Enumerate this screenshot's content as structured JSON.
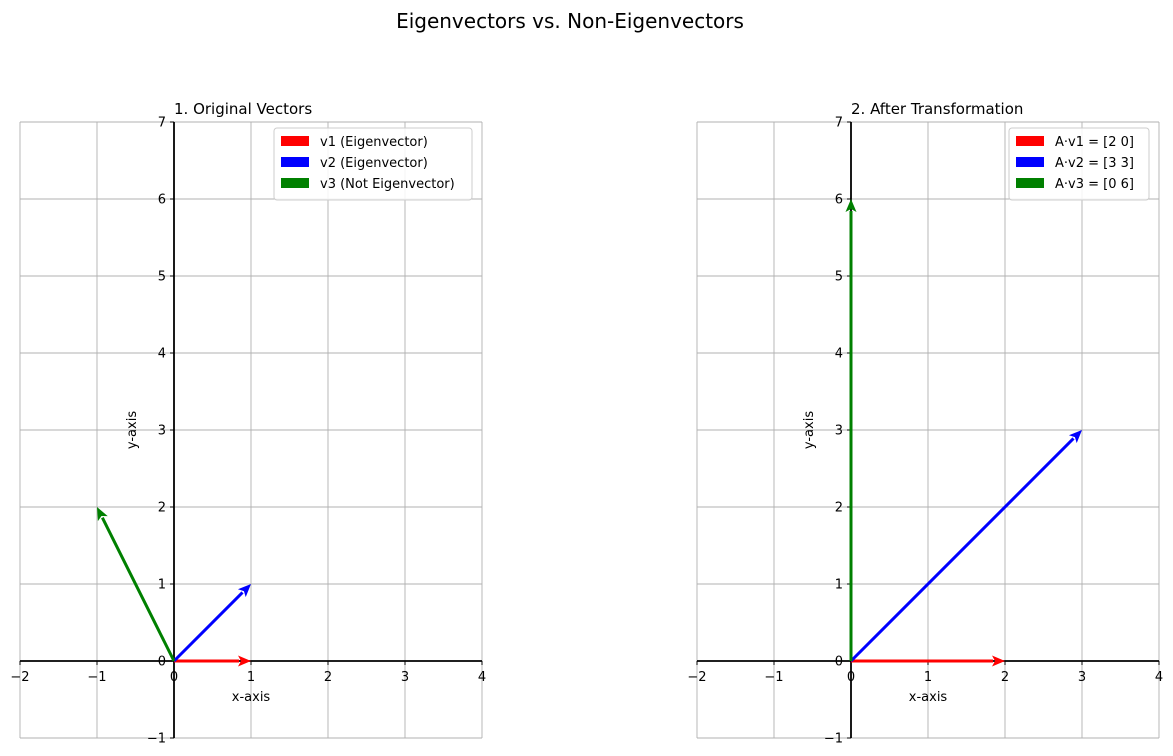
{
  "figure": {
    "suptitle": "Eigenvectors vs. Non-Eigenvectors"
  },
  "chart_data": [
    {
      "type": "quiver",
      "title": "1. Original Vectors",
      "xlabel": "x-axis",
      "ylabel": "y-axis",
      "xlim": [
        -2,
        4
      ],
      "ylim": [
        -1,
        7
      ],
      "xticks": [
        -2,
        -1,
        0,
        1,
        2,
        3,
        4
      ],
      "yticks": [
        -1,
        0,
        1,
        2,
        3,
        4,
        5,
        6,
        7
      ],
      "grid": true,
      "legend_position": "top-right",
      "vectors": [
        {
          "name": "v1 (Eigenvector)",
          "origin": [
            0,
            0
          ],
          "components": [
            1,
            0
          ],
          "color": "#ff0000"
        },
        {
          "name": "v2 (Eigenvector)",
          "origin": [
            0,
            0
          ],
          "components": [
            1,
            1
          ],
          "color": "#0000ff"
        },
        {
          "name": "v3 (Not Eigenvector)",
          "origin": [
            0,
            0
          ],
          "components": [
            -1,
            2
          ],
          "color": "#008000"
        }
      ]
    },
    {
      "type": "quiver",
      "title": "2. After Transformation",
      "xlabel": "x-axis",
      "ylabel": "y-axis",
      "xlim": [
        -2,
        4
      ],
      "ylim": [
        -1,
        7
      ],
      "xticks": [
        -2,
        -1,
        0,
        1,
        2,
        3,
        4
      ],
      "yticks": [
        -1,
        0,
        1,
        2,
        3,
        4,
        5,
        6,
        7
      ],
      "grid": true,
      "legend_position": "top-right",
      "vectors": [
        {
          "name": "A·v1 = [2 0]",
          "origin": [
            0,
            0
          ],
          "components": [
            2,
            0
          ],
          "color": "#ff0000"
        },
        {
          "name": "A·v2 = [3 3]",
          "origin": [
            0,
            0
          ],
          "components": [
            3,
            3
          ],
          "color": "#0000ff"
        },
        {
          "name": "A·v3 = [0 6]",
          "origin": [
            0,
            0
          ],
          "components": [
            0,
            6
          ],
          "color": "#008000"
        }
      ]
    }
  ]
}
